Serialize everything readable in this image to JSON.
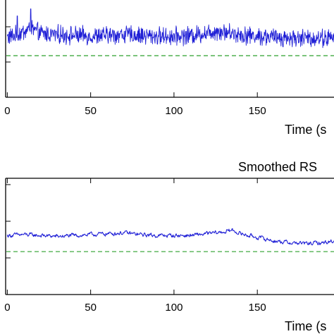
{
  "chart_data": [
    {
      "type": "line",
      "title": "",
      "xlabel": "Time (s",
      "ylabel": "",
      "xlim": [
        -1,
        196
      ],
      "x_ticks": [
        0,
        50,
        100,
        150
      ],
      "grid": false,
      "series": [
        {
          "color": "#1f1fd6",
          "style": "noisy signal",
          "x": [
            0,
            5,
            10,
            14,
            20,
            30,
            40,
            50,
            60,
            70,
            80,
            90,
            100,
            110,
            120,
            125,
            130,
            140,
            150,
            160,
            170,
            180,
            190,
            196
          ],
          "y": [
            68,
            70,
            74,
            78,
            72,
            71,
            70,
            69,
            70,
            71,
            70,
            69,
            69,
            70,
            73,
            75,
            74,
            71,
            69,
            68,
            67,
            67,
            67,
            67
          ],
          "noise_amplitude": 8,
          "spikes": [
            {
              "x": 14,
              "y": 100
            },
            {
              "x": 6,
              "y": 92
            }
          ]
        },
        {
          "color": "#2ca02c",
          "style": "dashed",
          "y_constant": 47
        }
      ]
    },
    {
      "type": "line",
      "title": "Smoothed RS",
      "xlabel": "Time (s",
      "ylabel": "",
      "xlim": [
        -1,
        196
      ],
      "x_ticks": [
        0,
        50,
        100,
        150
      ],
      "grid": false,
      "series": [
        {
          "color": "#1f1fd6",
          "style": "smoothed signal",
          "x": [
            0,
            10,
            20,
            30,
            40,
            50,
            60,
            70,
            80,
            90,
            100,
            110,
            120,
            130,
            135,
            140,
            150,
            160,
            170,
            180,
            190,
            196
          ],
          "y": [
            66,
            67,
            66,
            65,
            66,
            67,
            68,
            69,
            67,
            66,
            66,
            66,
            68,
            70,
            72,
            68,
            64,
            60,
            58,
            57,
            58,
            60
          ],
          "noise_amplitude": 3
        },
        {
          "color": "#2ca02c",
          "style": "dashed",
          "y_constant": 48
        }
      ]
    }
  ]
}
